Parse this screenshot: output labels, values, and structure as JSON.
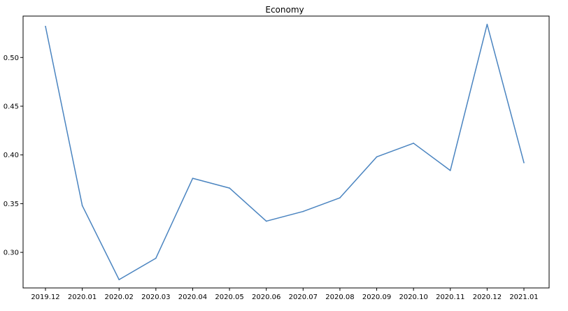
{
  "chart_data": {
    "type": "line",
    "title": "Economy",
    "xlabel": "",
    "ylabel": "",
    "x": [
      "2019.12",
      "2020.01",
      "2020.02",
      "2020.03",
      "2020.04",
      "2020.05",
      "2020.06",
      "2020.07",
      "2020.08",
      "2020.09",
      "2020.10",
      "2020.11",
      "2020.12",
      "2021.01"
    ],
    "series": [
      {
        "values": [
          0.532,
          0.348,
          0.272,
          0.294,
          0.376,
          0.366,
          0.332,
          0.342,
          0.356,
          0.398,
          0.412,
          0.384,
          0.534,
          0.392
        ],
        "color": "#4a84c0"
      }
    ],
    "yticks": [
      "0.30",
      "0.35",
      "0.40",
      "0.45",
      "0.50"
    ],
    "ylim": [
      0.2635,
      0.5425
    ],
    "grid": false,
    "legend": "none"
  }
}
